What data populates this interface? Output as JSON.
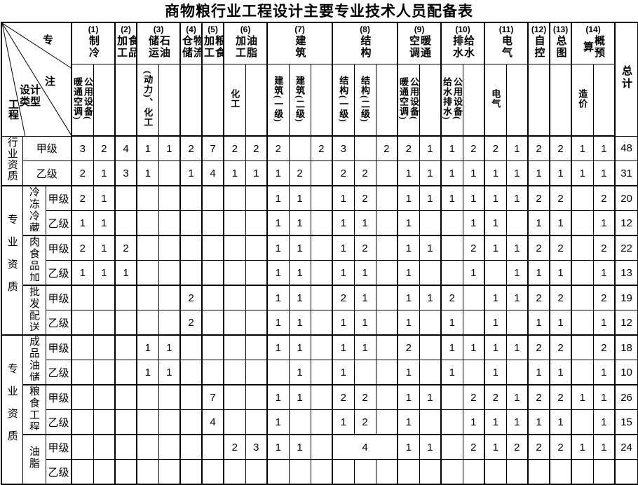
{
  "title": "商物粮行业工程设计主要专业技术人员配备表",
  "total_label": "总计",
  "corner": {
    "specialty": "专",
    "note": "注",
    "design_type": "设计\n类型",
    "engineering": "工程"
  },
  "columns": [
    {
      "num": "(1)",
      "name": "制冷",
      "subs": [
        "公用设备(\n暖通空调)",
        ""
      ]
    },
    {
      "num": "(2)",
      "name": "食品\n加工",
      "subs": [
        ""
      ]
    },
    {
      "num": "(3)",
      "name": "石油\n储运",
      "subs": [
        "(动力)、化工",
        ""
      ]
    },
    {
      "num": "(4)",
      "name": "物流\n仓储",
      "subs": [
        ""
      ]
    },
    {
      "num": "(5)",
      "name": "粮食\n加工",
      "subs": [
        ""
      ]
    },
    {
      "num": "(6)",
      "name": "油脂\n加工",
      "subs": [
        "化工",
        ""
      ]
    },
    {
      "num": "(7)",
      "name": "建筑",
      "subs": [
        "建筑(一级)",
        "建筑(二级)",
        ""
      ]
    },
    {
      "num": "(8)",
      "name": "结构",
      "subs": [
        "结构(一级)",
        "结构(二级)",
        ""
      ]
    },
    {
      "num": "(9)",
      "name": "暖通\n空调",
      "subs": [
        "公用设备(\n暖通空调)",
        ""
      ]
    },
    {
      "num": "(10)",
      "name": "给水\n排水",
      "subs": [
        "公用设备(\n给水排水)",
        ""
      ]
    },
    {
      "num": "(11)",
      "name": "电气",
      "subs": [
        "电气",
        ""
      ]
    },
    {
      "num": "(12)",
      "name": "自控",
      "subs": [
        ""
      ]
    },
    {
      "num": "(13)",
      "name": "总图",
      "subs": [
        ""
      ]
    },
    {
      "num": "(14)",
      "name": "概预\n算",
      "subs": [
        "造价",
        ""
      ]
    }
  ],
  "sections": [
    {
      "label": "行业资质",
      "wide_grade": true,
      "groups": [
        {
          "label": "",
          "rows": [
            {
              "grade": "甲级",
              "cells": [
                "3",
                "2",
                "4",
                "1",
                "1",
                "2",
                "7",
                "2",
                "2",
                "2",
                "",
                "2",
                "3",
                "",
                "2",
                "2",
                "1",
                "1",
                "2",
                "2",
                "1",
                "2",
                "2",
                "1",
                "1"
              ],
              "total": "48"
            },
            {
              "grade": "乙级",
              "cells": [
                "2",
                "1",
                "3",
                "1",
                "",
                "1",
                "4",
                "1",
                "1",
                "1",
                "2",
                "",
                "2",
                "2",
                "",
                "1",
                "1",
                "1",
                "1",
                "1",
                "1",
                "1",
                "1",
                "1",
                "1"
              ],
              "total": "31"
            }
          ]
        }
      ]
    },
    {
      "label": "专业资质",
      "wide_grade": false,
      "groups": [
        {
          "label": "冷冻冷藏",
          "rows": [
            {
              "grade": "甲级",
              "cells": [
                "2",
                "1",
                "",
                "",
                "",
                "",
                "",
                "",
                "",
                "1",
                "1",
                "",
                "1",
                "2",
                "",
                "1",
                "1",
                "1",
                "1",
                "1",
                "1",
                "2",
                "2",
                "",
                "2"
              ],
              "total": "20"
            },
            {
              "grade": "乙级",
              "cells": [
                "1",
                "1",
                "",
                "",
                "",
                "",
                "",
                "",
                "",
                "1",
                "1",
                "",
                "1",
                "1",
                "",
                "1",
                "",
                "",
                "1",
                "1",
                "",
                "1",
                "1",
                "",
                "1"
              ],
              "total": "12"
            }
          ]
        },
        {
          "label": "肉食品加工",
          "rows": [
            {
              "grade": "甲级",
              "cells": [
                "2",
                "1",
                "2",
                "",
                "",
                "",
                "",
                "",
                "",
                "1",
                "1",
                "",
                "1",
                "2",
                "",
                "1",
                "1",
                "",
                "2",
                "1",
                "1",
                "2",
                "2",
                "",
                "2"
              ],
              "total": "22"
            },
            {
              "grade": "乙级",
              "cells": [
                "1",
                "1",
                "1",
                "",
                "",
                "",
                "",
                "",
                "",
                "1",
                "1",
                "",
                "1",
                "1",
                "",
                "1",
                "",
                "",
                "1",
                "",
                "1",
                "1",
                "1",
                "",
                "1"
              ],
              "total": "13"
            }
          ]
        },
        {
          "label": "批发配送与",
          "rows": [
            {
              "grade": "甲级",
              "cells": [
                "",
                "",
                "",
                "",
                "",
                "2",
                "",
                "",
                "",
                "1",
                "1",
                "",
                "2",
                "1",
                "",
                "1",
                "1",
                "2",
                "",
                "1",
                "1",
                "2",
                "2",
                "",
                "2"
              ],
              "total": "19"
            },
            {
              "grade": "乙级",
              "cells": [
                "",
                "",
                "",
                "",
                "",
                "2",
                "",
                "",
                "",
                "1",
                "1",
                "",
                "1",
                "1",
                "",
                "1",
                "",
                "1",
                "",
                "1",
                "",
                "1",
                "1",
                "",
                "1"
              ],
              "total": "12"
            }
          ]
        }
      ]
    },
    {
      "label": "专业资质",
      "wide_grade": false,
      "groups": [
        {
          "label": "成品油储",
          "rows": [
            {
              "grade": "甲级",
              "cells": [
                "",
                "",
                "",
                "1",
                "1",
                "",
                "",
                "",
                "",
                "1",
                "1",
                "",
                "1",
                "1",
                "",
                "2",
                "",
                "1",
                "1",
                "1",
                "1",
                "2",
                "2",
                "",
                "2"
              ],
              "total": "18"
            },
            {
              "grade": "乙级",
              "cells": [
                "",
                "",
                "",
                "1",
                "1",
                "",
                "",
                "",
                "",
                "",
                "1",
                "",
                "1",
                "",
                "",
                "1",
                "",
                "1",
                "",
                "1",
                "",
                "1",
                "1",
                "",
                "1"
              ],
              "total": "10"
            }
          ]
        },
        {
          "label": "粮食工程",
          "rows": [
            {
              "grade": "甲级",
              "cells": [
                "",
                "",
                "",
                "",
                "",
                "",
                "7",
                "",
                "",
                "1",
                "1",
                "",
                "2",
                "2",
                "",
                "1",
                "1",
                "",
                "2",
                "2",
                "1",
                "2",
                "2",
                "1",
                "1"
              ],
              "total": "26"
            },
            {
              "grade": "乙级",
              "cells": [
                "",
                "",
                "",
                "",
                "",
                "",
                "4",
                "",
                "",
                "1",
                "",
                "",
                "1",
                "2",
                "",
                "1",
                "",
                "",
                "1",
                "1",
                "1",
                "1",
                "1",
                "",
                "1"
              ],
              "total": "15"
            }
          ]
        },
        {
          "label": "油脂",
          "rows": [
            {
              "grade": "甲级",
              "merge8": true,
              "cells": [
                "",
                "",
                "",
                "",
                "",
                "",
                "",
                "2",
                "3",
                "1",
                "1",
                "",
                "4",
                "1",
                "1",
                "",
                "2",
                "1",
                "2",
                "2",
                "2",
                "1",
                "1"
              ],
              "total": "24"
            },
            {
              "grade": "乙级",
              "cells": [
                "",
                "",
                "",
                "",
                "",
                "",
                "",
                "",
                "",
                "",
                "",
                "",
                "",
                "",
                "",
                "",
                "",
                "",
                "",
                "",
                "",
                "",
                "",
                "",
                ""
              ],
              "total": ""
            }
          ]
        }
      ]
    }
  ]
}
